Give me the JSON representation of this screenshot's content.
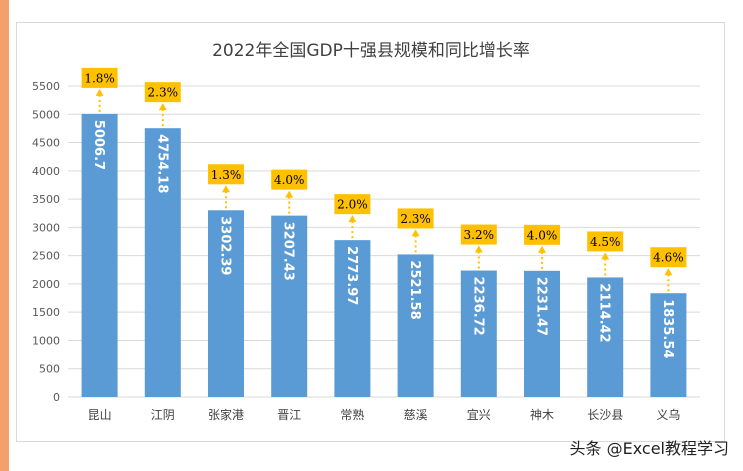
{
  "chart_data": {
    "type": "bar",
    "title": "2022年全国GDP十强县规模和同比增长率",
    "categories": [
      "昆山",
      "江阴",
      "张家港",
      "晋江",
      "常熟",
      "慈溪",
      "宜兴",
      "神木",
      "长沙县",
      "义乌"
    ],
    "values": [
      5006.7,
      4754.18,
      3302.39,
      3207.43,
      2773.97,
      2521.58,
      2236.72,
      2231.47,
      2114.42,
      1835.54
    ],
    "value_labels": [
      "5006.7",
      "4754.18",
      "3302.39",
      "3207.43",
      "2773.97",
      "2521.58",
      "2236.72",
      "2231.47",
      "2114.42",
      "1835.54"
    ],
    "growth_labels": [
      "1.8%",
      "2.3%",
      "1.3%",
      "4.0%",
      "2.0%",
      "2.3%",
      "3.2%",
      "4.0%",
      "4.5%",
      "4.6%"
    ],
    "yticks": [
      "0",
      "500",
      "1000",
      "1500",
      "2000",
      "2500",
      "3000",
      "3500",
      "4000",
      "4500",
      "5000",
      "5500"
    ],
    "ylim": [
      0,
      5500
    ],
    "grid": true,
    "colors": {
      "bar": "#5b9bd5",
      "growth_box": "#ffc000",
      "arrow": "#ffc000",
      "grid": "#d9d9d9"
    }
  },
  "watermark": "头条 @Excel教程学习"
}
